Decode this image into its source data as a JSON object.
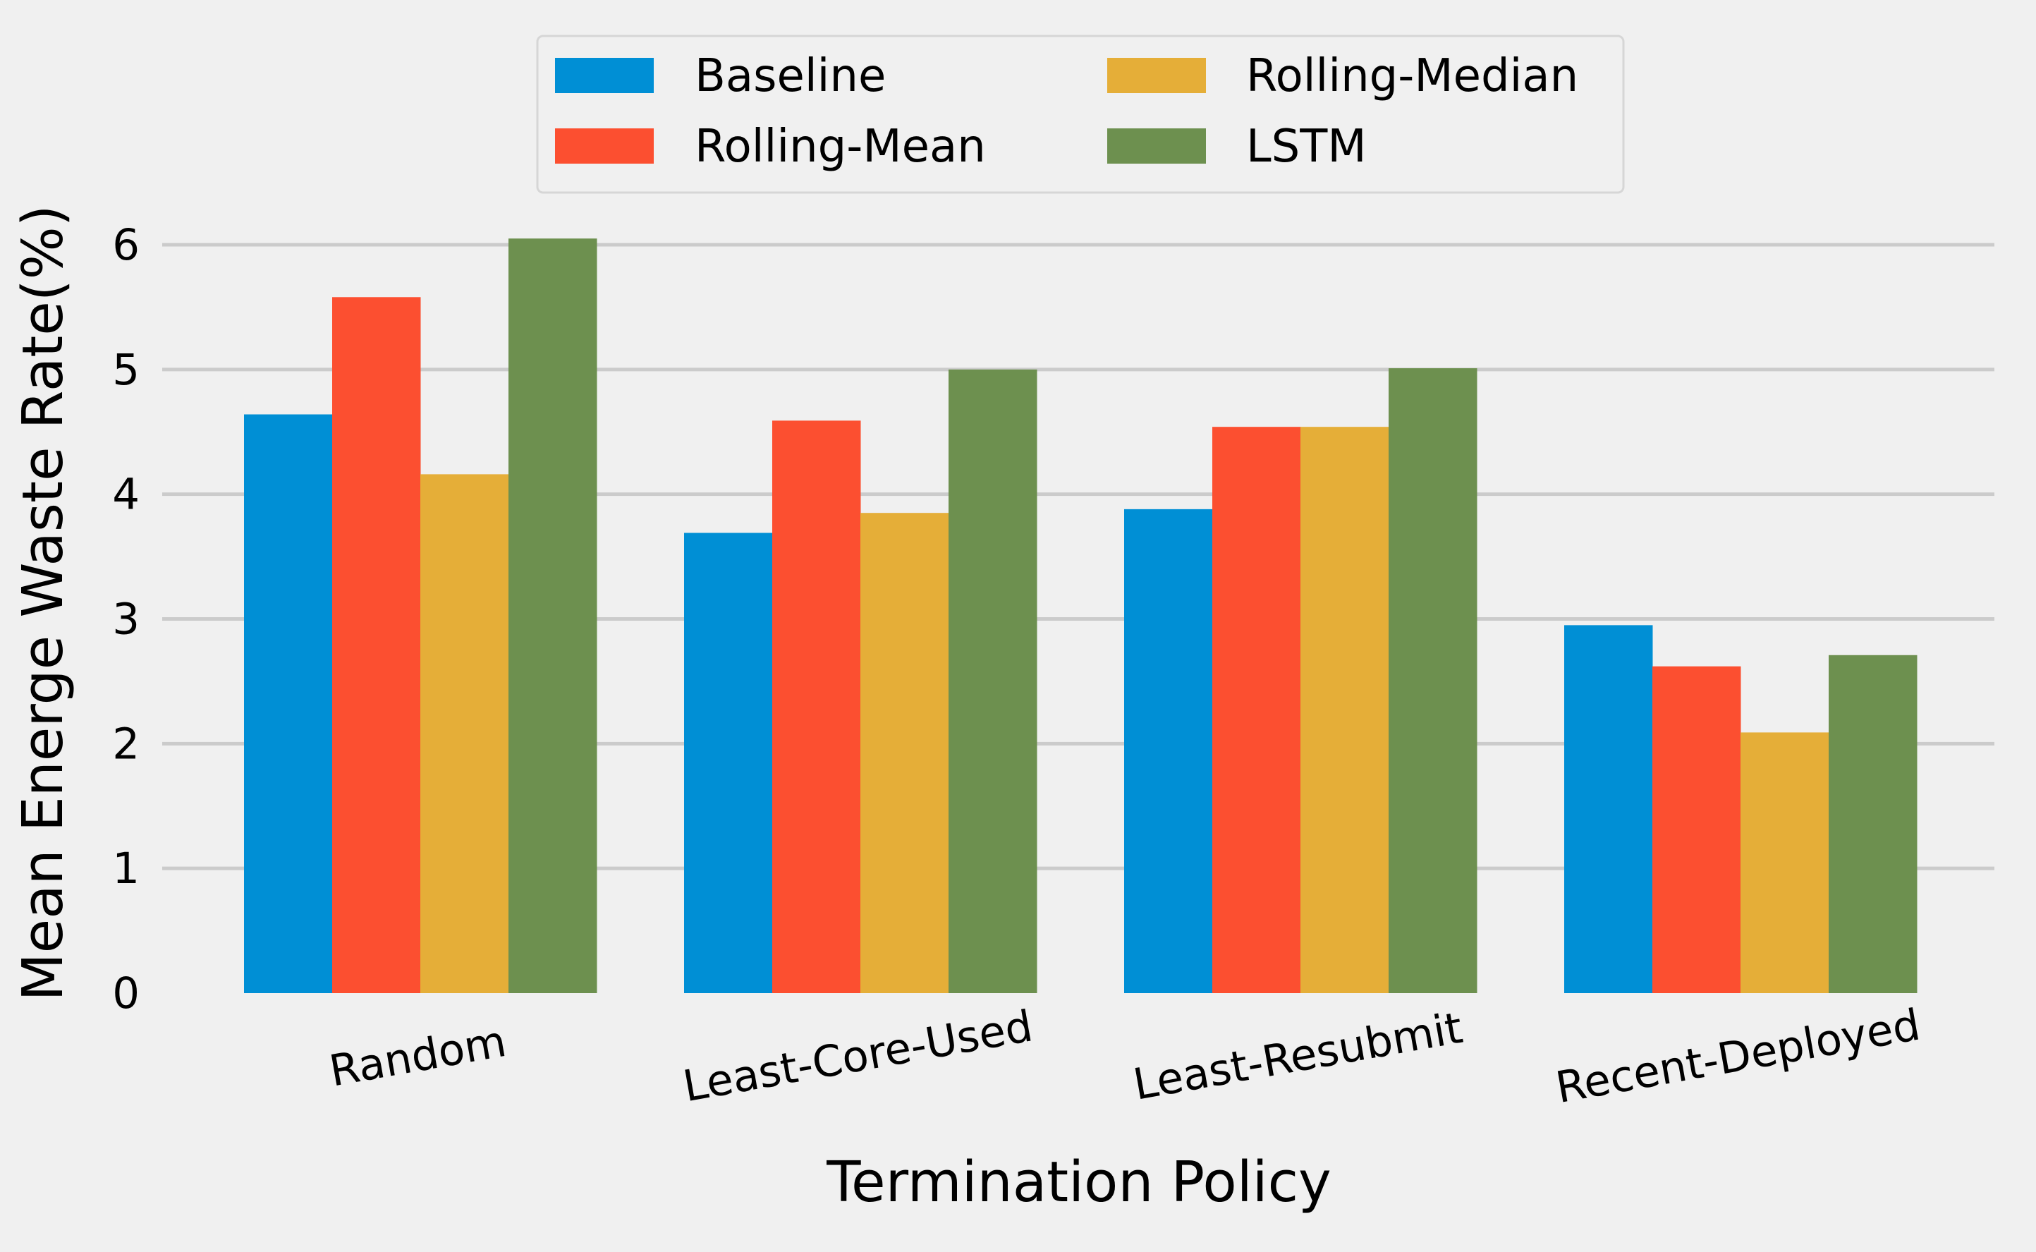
{
  "chart_data": {
    "type": "bar",
    "title": "",
    "xlabel": "Termination Policy",
    "ylabel": "Mean Energe Waste Rate(%)",
    "categories": [
      "Random",
      "Least-Core-Used",
      "Least-Resubmit",
      "Recent-Deployed"
    ],
    "series": [
      {
        "name": "Baseline",
        "color": "#008fd5",
        "values": [
          4.64,
          3.69,
          3.88,
          2.95
        ]
      },
      {
        "name": "Rolling-Mean",
        "color": "#fc4f30",
        "values": [
          5.58,
          4.59,
          4.54,
          2.62
        ]
      },
      {
        "name": "Rolling-Median",
        "color": "#e5ae38",
        "values": [
          4.16,
          3.85,
          4.54,
          2.09
        ]
      },
      {
        "name": "LSTM",
        "color": "#6d904f",
        "values": [
          6.05,
          5.0,
          5.01,
          2.71
        ]
      }
    ],
    "ylim": [
      0,
      6.35
    ],
    "yticks": [
      0,
      1,
      2,
      3,
      4,
      5,
      6
    ],
    "grid": true,
    "grid_axis": "y",
    "legend_position": "top-center",
    "legend_columns": 2,
    "style": "fivethirtyeight",
    "background_color": "#f0f0f0",
    "grid_color": "#cbcbcb"
  }
}
